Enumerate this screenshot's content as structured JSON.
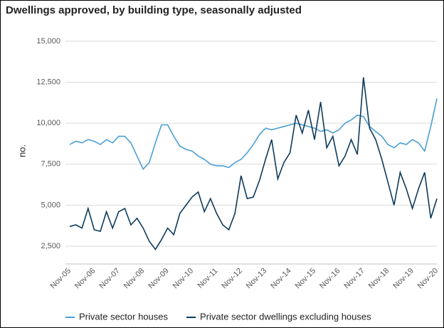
{
  "chart_data": {
    "type": "line",
    "title": "Dwellings approved, by building type, seasonally adjusted",
    "y_label": "no.",
    "categories": [
      "Nov-05",
      null,
      null,
      null,
      "Nov-06",
      null,
      null,
      null,
      "Nov-07",
      null,
      null,
      null,
      "Nov-08",
      null,
      null,
      null,
      "Nov-09",
      null,
      null,
      null,
      "Nov-10",
      null,
      null,
      null,
      "Nov-11",
      null,
      null,
      null,
      "Nov-12",
      null,
      null,
      null,
      "Nov-13",
      null,
      null,
      null,
      "Nov-14",
      null,
      null,
      null,
      "Nov-15",
      null,
      null,
      null,
      "Nov-16",
      null,
      null,
      null,
      "Nov-17",
      null,
      null,
      null,
      "Nov-18",
      null,
      null,
      null,
      "Nov-19",
      null,
      null,
      null,
      "Nov-20"
    ],
    "series": [
      {
        "name": "Private sector houses",
        "color": "#4a9fd4",
        "values": [
          8700,
          8900,
          8800,
          9000,
          8900,
          8700,
          9000,
          8800,
          9200,
          9200,
          8800,
          8000,
          7200,
          7600,
          8800,
          9900,
          9900,
          9200,
          8600,
          8400,
          8300,
          8000,
          7800,
          7500,
          7400,
          7400,
          7300,
          7600,
          7800,
          8200,
          8700,
          9300,
          9700,
          9600,
          9700,
          9800,
          9900,
          10000,
          9900,
          9800,
          9700,
          9500,
          9600,
          9400,
          9600,
          10000,
          10200,
          10500,
          10400,
          9800,
          9500,
          9200,
          8700,
          8500,
          8800,
          8700,
          9000,
          8800,
          8300,
          9800,
          11500
        ]
      },
      {
        "name": "Private sector dwellings excluding houses",
        "color": "#0d3a5c",
        "values": [
          3700,
          3800,
          3600,
          4800,
          3500,
          3400,
          4600,
          3600,
          4600,
          4800,
          3800,
          4200,
          3600,
          2800,
          2300,
          2900,
          3600,
          3200,
          4500,
          5000,
          5500,
          5800,
          4600,
          5400,
          4500,
          3800,
          3500,
          4500,
          6800,
          5400,
          5500,
          6500,
          7800,
          9000,
          6600,
          7600,
          8200,
          10500,
          9400,
          10800,
          9000,
          11300,
          8500,
          9200,
          7400,
          8000,
          9000,
          8100,
          12800,
          9700,
          9000,
          7800,
          6400,
          5000,
          7000,
          6000,
          4800,
          6000,
          7000,
          4200,
          5400
        ]
      }
    ],
    "ylim": [
      1500,
      15000
    ],
    "yticks": [
      {
        "value": 2500,
        "label": "2,500"
      },
      {
        "value": 5000,
        "label": "5,000"
      },
      {
        "value": 7500,
        "label": "7,500"
      },
      {
        "value": 10000,
        "label": "10,000"
      },
      {
        "value": 12500,
        "label": "12,500"
      },
      {
        "value": 15000,
        "label": "15,000"
      }
    ],
    "grid": true
  }
}
